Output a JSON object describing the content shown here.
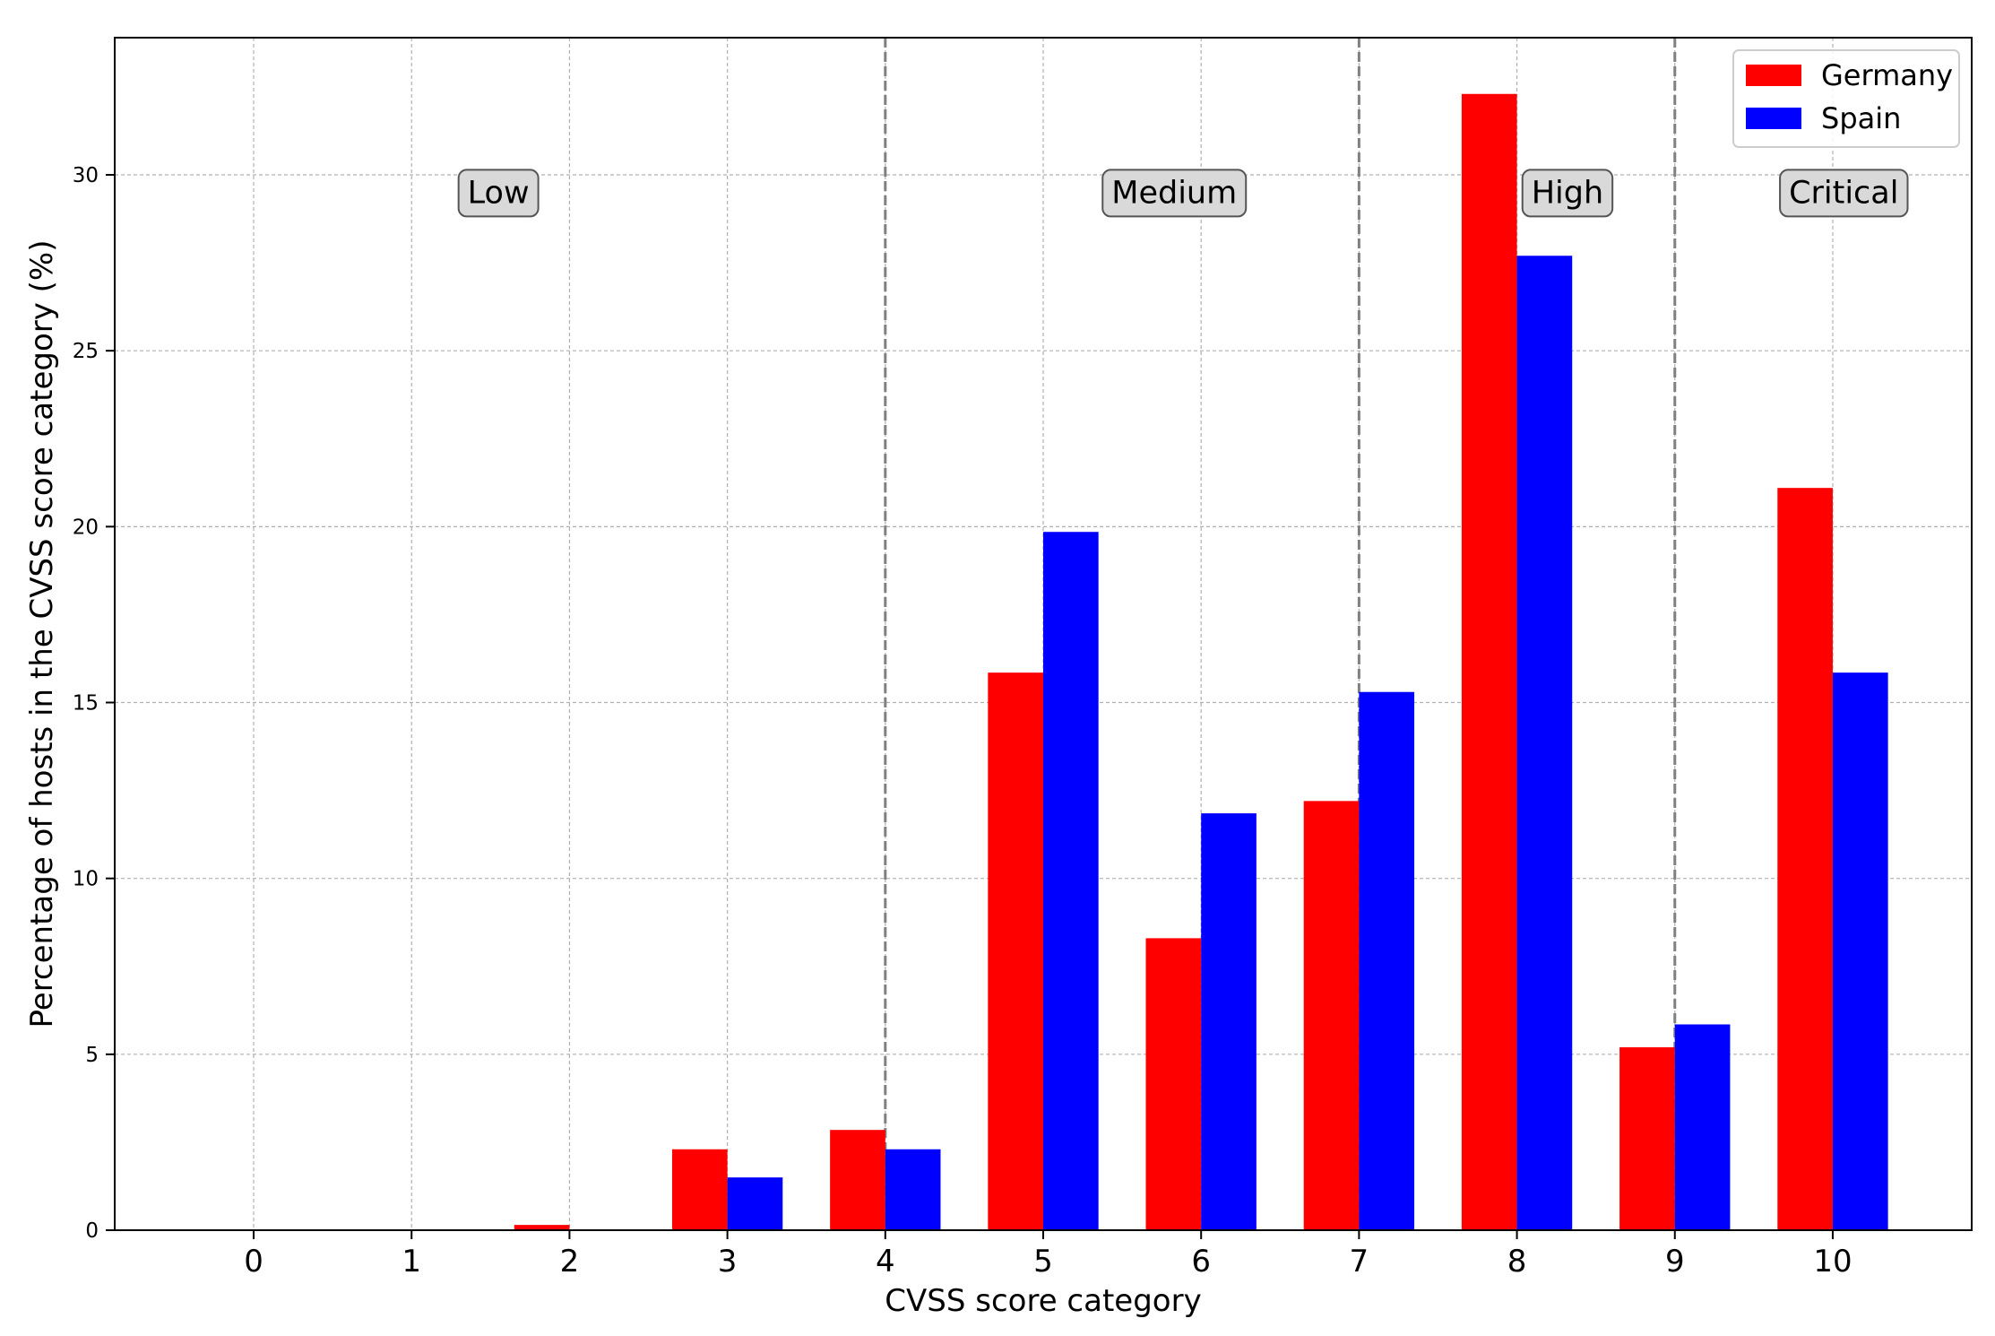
{
  "chart_data": {
    "type": "bar",
    "title": "",
    "xlabel": "CVSS score category",
    "ylabel": "Percentage of hosts in the CVSS score category (%)",
    "categories": [
      "0",
      "1",
      "2",
      "3",
      "4",
      "5",
      "6",
      "7",
      "8",
      "9",
      "10"
    ],
    "series": [
      {
        "name": "Germany",
        "color": "#ff0000",
        "values": [
          0,
          0,
          0.15,
          2.3,
          2.85,
          15.85,
          8.3,
          12.2,
          32.3,
          5.2,
          21.1
        ]
      },
      {
        "name": "Spain",
        "color": "#0000ff",
        "values": [
          0,
          0,
          0,
          1.5,
          2.3,
          19.85,
          11.85,
          15.3,
          27.7,
          5.85,
          15.85
        ]
      }
    ],
    "ylim": [
      0,
      33.9
    ],
    "xlim": [
      -0.88,
      10.88
    ],
    "yticks": [
      0,
      5,
      10,
      15,
      20,
      25,
      30
    ],
    "grid": true,
    "legend": "top-right",
    "dividers": [
      4,
      9,
      7
    ],
    "regions": [
      {
        "label": "Low",
        "x": 1.55,
        "y": 29.2
      },
      {
        "label": "Medium",
        "x": 5.83,
        "y": 29.2
      },
      {
        "label": "High",
        "x": 8.32,
        "y": 29.2
      },
      {
        "label": "Critical",
        "x": 10.07,
        "y": 29.2
      }
    ]
  }
}
